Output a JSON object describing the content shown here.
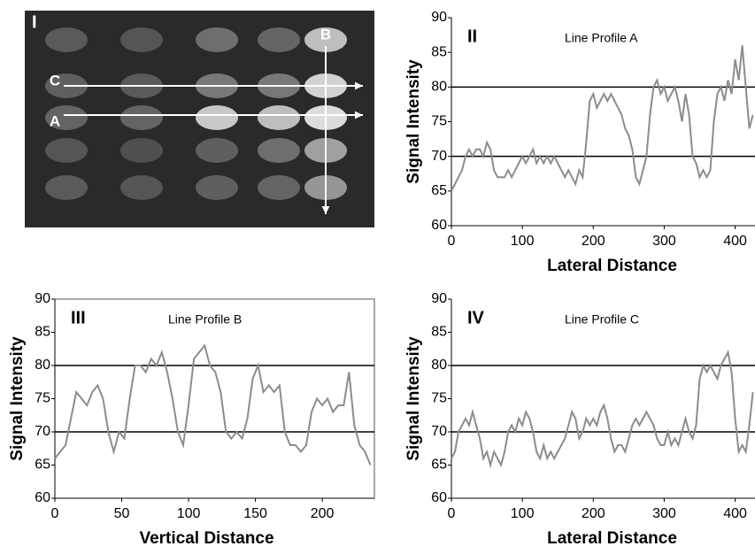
{
  "chart_data": [
    {
      "type": "image",
      "panel_label": "I",
      "annotations": [
        "B",
        "C",
        "A"
      ]
    },
    {
      "type": "line",
      "panel_label": "II",
      "title": "Line Profile A",
      "xlabel": "Lateral Distance",
      "ylabel": "Signal Intensity",
      "color": "#8c8c8c",
      "xlim": [
        0,
        428
      ],
      "xticks": [
        0,
        100,
        200,
        300,
        400
      ],
      "ylim": [
        60,
        90
      ],
      "yticks": [
        60,
        65,
        70,
        75,
        80,
        85,
        90
      ],
      "hlines": [
        70,
        80
      ],
      "x": [
        0,
        5,
        10,
        15,
        20,
        25,
        30,
        35,
        40,
        45,
        50,
        55,
        60,
        65,
        70,
        75,
        80,
        85,
        90,
        95,
        100,
        105,
        110,
        115,
        120,
        125,
        130,
        135,
        140,
        145,
        150,
        155,
        160,
        165,
        170,
        175,
        180,
        185,
        190,
        195,
        200,
        205,
        210,
        215,
        220,
        225,
        230,
        235,
        240,
        245,
        250,
        255,
        260,
        265,
        270,
        275,
        280,
        285,
        290,
        295,
        300,
        305,
        310,
        315,
        320,
        325,
        330,
        335,
        340,
        345,
        350,
        355,
        360,
        365,
        370,
        375,
        380,
        385,
        390,
        395,
        400,
        405,
        410,
        415,
        420,
        425
      ],
      "values": [
        65,
        66,
        67,
        68,
        70,
        71,
        70,
        71,
        71,
        70,
        72,
        71,
        68,
        67,
        67,
        67,
        68,
        67,
        68,
        69,
        70,
        69,
        70,
        71,
        69,
        70,
        69,
        70,
        69,
        70,
        69,
        68,
        67,
        68,
        67,
        66,
        68,
        67,
        72,
        78,
        79,
        77,
        78,
        79,
        78,
        79,
        78,
        77,
        76,
        74,
        73,
        71,
        67,
        66,
        68,
        70,
        76,
        80,
        81,
        79,
        80,
        78,
        79,
        80,
        78,
        75,
        79,
        76,
        70,
        69,
        67,
        68,
        67,
        68,
        75,
        79,
        80,
        78,
        81,
        79,
        84,
        81,
        86,
        80,
        74,
        76
      ]
    },
    {
      "type": "line",
      "panel_label": "III",
      "title": "Line Profile B",
      "xlabel": "Vertical Distance",
      "ylabel": "Signal Intensity",
      "color": "#8c8c8c",
      "xlim": [
        0,
        239
      ],
      "xticks": [
        0,
        50,
        100,
        150,
        200
      ],
      "ylim": [
        60,
        90
      ],
      "yticks": [
        60,
        65,
        70,
        75,
        80,
        85,
        90
      ],
      "hlines": [
        70,
        80
      ],
      "x": [
        0,
        4,
        8,
        12,
        16,
        20,
        24,
        28,
        32,
        36,
        40,
        44,
        48,
        52,
        56,
        60,
        64,
        68,
        72,
        76,
        80,
        84,
        88,
        92,
        96,
        100,
        104,
        108,
        112,
        116,
        120,
        124,
        128,
        132,
        136,
        140,
        144,
        148,
        152,
        156,
        160,
        164,
        168,
        172,
        176,
        180,
        184,
        188,
        192,
        196,
        200,
        204,
        208,
        212,
        216,
        220,
        224,
        228,
        232,
        236
      ],
      "values": [
        66,
        67,
        68,
        72,
        76,
        75,
        74,
        76,
        77,
        75,
        70,
        67,
        70,
        69,
        75,
        80,
        80,
        79,
        81,
        80,
        82,
        79,
        75,
        70,
        68,
        74,
        81,
        82,
        83,
        80,
        79,
        76,
        70,
        69,
        70,
        69,
        72,
        78,
        80,
        76,
        77,
        76,
        77,
        70,
        68,
        68,
        67,
        68,
        73,
        75,
        74,
        75,
        73,
        74,
        74,
        79,
        71,
        68,
        67,
        65
      ]
    },
    {
      "type": "line",
      "panel_label": "IV",
      "title": "Line Profile C",
      "xlabel": "Lateral Distance",
      "ylabel": "Signal Intensity",
      "color": "#8c8c8c",
      "xlim": [
        0,
        428
      ],
      "xticks": [
        0,
        100,
        200,
        300,
        400
      ],
      "ylim": [
        60,
        90
      ],
      "yticks": [
        60,
        65,
        70,
        75,
        80,
        85,
        90
      ],
      "hlines": [
        70,
        80
      ],
      "x": [
        0,
        5,
        10,
        15,
        20,
        25,
        30,
        35,
        40,
        45,
        50,
        55,
        60,
        65,
        70,
        75,
        80,
        85,
        90,
        95,
        100,
        105,
        110,
        115,
        120,
        125,
        130,
        135,
        140,
        145,
        150,
        155,
        160,
        165,
        170,
        175,
        180,
        185,
        190,
        195,
        200,
        205,
        210,
        215,
        220,
        225,
        230,
        235,
        240,
        245,
        250,
        255,
        260,
        265,
        270,
        275,
        280,
        285,
        290,
        295,
        300,
        305,
        310,
        315,
        320,
        325,
        330,
        335,
        340,
        345,
        350,
        355,
        360,
        365,
        370,
        375,
        380,
        385,
        390,
        395,
        400,
        405,
        410,
        415,
        420,
        425
      ],
      "values": [
        66,
        67,
        70,
        71,
        72,
        71,
        73,
        71,
        69,
        66,
        67,
        65,
        67,
        66,
        65,
        67,
        70,
        71,
        70,
        72,
        71,
        73,
        72,
        70,
        67,
        66,
        68,
        66,
        67,
        66,
        67,
        68,
        69,
        71,
        73,
        72,
        69,
        70,
        72,
        71,
        72,
        71,
        73,
        74,
        72,
        69,
        67,
        68,
        68,
        67,
        69,
        71,
        72,
        71,
        72,
        73,
        72,
        71,
        69,
        68,
        68,
        70,
        68,
        69,
        68,
        70,
        72,
        70,
        69,
        71,
        78,
        80,
        79,
        80,
        79,
        78,
        80,
        81,
        82,
        79,
        72,
        67,
        68,
        67,
        71,
        76
      ]
    }
  ]
}
